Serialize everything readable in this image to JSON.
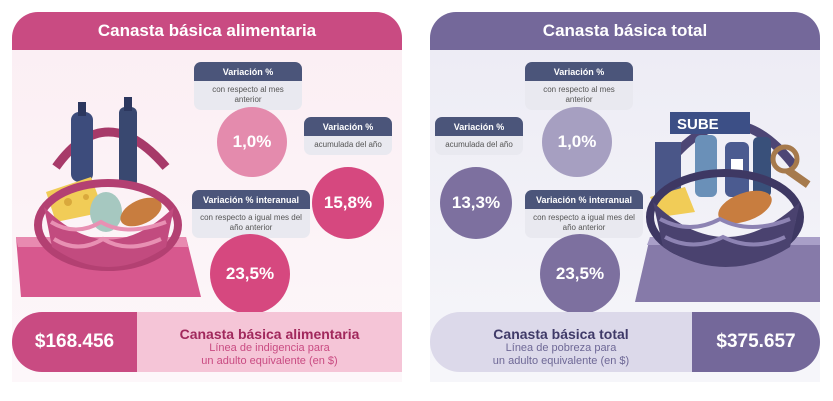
{
  "left": {
    "header": "Canasta básica alimentaria",
    "monthly": {
      "title": "Variación %",
      "subtitle": "con respecto al mes anterior",
      "value": "1,0%"
    },
    "yearly": {
      "title": "Variación %",
      "subtitle": "acumulada del año",
      "value": "15,8%"
    },
    "interannual": {
      "title": "Variación % interanual",
      "subtitle": "con respecto a igual mes del año anterior",
      "value": "23,5%"
    },
    "footer": {
      "amount": "$168.456",
      "title": "Canasta básica alimentaria",
      "sub1": "Línea de indigencia para",
      "sub2": "un adulto equivalente (en $)"
    }
  },
  "right": {
    "header": "Canasta básica total",
    "monthly": {
      "title": "Variación %",
      "subtitle": "con respecto al mes anterior",
      "value": "1,0%"
    },
    "yearly": {
      "title": "Variación %",
      "subtitle": "acumulada del año",
      "value": "13,3%"
    },
    "interannual": {
      "title": "Variación % interanual",
      "subtitle": "con respecto a igual mes del año anterior",
      "value": "23,5%"
    },
    "basket_card_text": "SUBE",
    "footer": {
      "amount": "$375.657",
      "title": "Canasta básica total",
      "sub1": "Línea de pobreza para",
      "sub2": "un adulto equivalente (en $)"
    }
  },
  "colors": {
    "pink_header": "#c94b82",
    "lavender_header": "#74689a",
    "label_dark": "#4b557a"
  }
}
